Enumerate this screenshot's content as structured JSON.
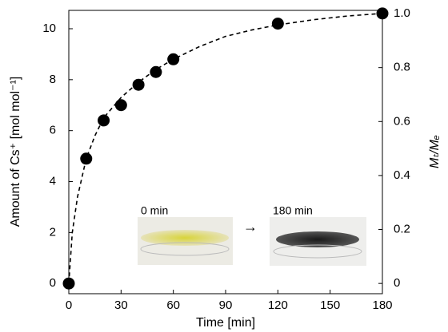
{
  "chart_data": {
    "type": "scatter",
    "xlabel": "Time [min]",
    "ylabel": "Amount of Cs⁺ [mol mol⁻¹]",
    "y2label": "Mₜ/Mₑ",
    "xlim": [
      0,
      180
    ],
    "xticks": [
      0,
      30,
      60,
      90,
      120,
      150,
      180
    ],
    "ylim": [
      -0.4,
      10.72
    ],
    "yticks": [
      0,
      2,
      4,
      6,
      8,
      10
    ],
    "y2lim": [
      -0.038,
      1.012
    ],
    "y2ticks": [
      0,
      0.2,
      0.4,
      0.6,
      0.8,
      {
        "value": 1,
        "label": "1.0"
      }
    ],
    "series": [
      {
        "color": "#000000",
        "marker": "circle",
        "x": [
          0,
          10,
          20,
          30,
          40,
          50,
          60,
          120,
          180
        ],
        "values": [
          0,
          4.9,
          6.4,
          7.0,
          7.8,
          8.3,
          8.8,
          10.2,
          10.6
        ]
      },
      {
        "color": "#000000",
        "line_style": "dashed",
        "x": [
          0,
          2,
          5,
          10,
          15,
          20,
          30,
          40,
          50,
          60,
          75,
          90,
          105,
          120,
          140,
          160,
          180
        ],
        "values": [
          0,
          2.0,
          3.4,
          4.9,
          5.8,
          6.5,
          7.3,
          7.9,
          8.4,
          8.8,
          9.3,
          9.7,
          9.95,
          10.15,
          10.35,
          10.5,
          10.6
        ]
      }
    ],
    "annotations": [
      "0 min",
      "→",
      "180 min"
    ]
  }
}
